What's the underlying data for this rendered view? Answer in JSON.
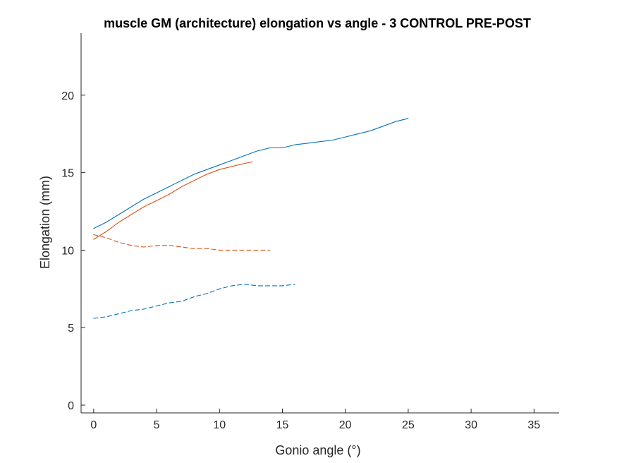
{
  "chart_data": {
    "type": "line",
    "title": "muscle GM (architecture) elongation vs angle - 3 CONTROL PRE-POST",
    "xlabel": "Gonio angle (°)",
    "ylabel": "Elongation (mm)",
    "xlim": [
      -1,
      37
    ],
    "ylim": [
      -0.5,
      24
    ],
    "xticks": [
      0,
      5,
      10,
      15,
      20,
      25,
      30,
      35
    ],
    "yticks": [
      0,
      5,
      10,
      15,
      20
    ],
    "grid": false,
    "legend": "none",
    "series": [
      {
        "color": "#0072BD",
        "style": "solid",
        "x": [
          0,
          1,
          2,
          3,
          4,
          5,
          6,
          7,
          8,
          9,
          10,
          11,
          12,
          13,
          14,
          15,
          16,
          17,
          18,
          19,
          20,
          21,
          22,
          23,
          24,
          25
        ],
        "y": [
          11.4,
          11.8,
          12.3,
          12.8,
          13.3,
          13.7,
          14.1,
          14.5,
          14.9,
          15.2,
          15.5,
          15.8,
          16.1,
          16.4,
          16.6,
          16.6,
          16.8,
          16.9,
          17.0,
          17.1,
          17.3,
          17.5,
          17.7,
          18.0,
          18.3,
          18.5
        ]
      },
      {
        "color": "#D95319",
        "style": "solid",
        "x": [
          0,
          1,
          2,
          3,
          4,
          5,
          6,
          7,
          8,
          9,
          10,
          11,
          12,
          12.6
        ],
        "y": [
          10.7,
          11.2,
          11.8,
          12.3,
          12.8,
          13.2,
          13.6,
          14.1,
          14.5,
          14.9,
          15.2,
          15.4,
          15.6,
          15.7
        ]
      },
      {
        "color": "#D95319",
        "style": "dashed",
        "x": [
          0,
          1,
          2,
          3,
          4,
          5,
          6,
          7,
          8,
          9,
          10,
          11,
          12,
          13,
          14
        ],
        "y": [
          11.0,
          10.8,
          10.5,
          10.3,
          10.2,
          10.3,
          10.3,
          10.2,
          10.1,
          10.1,
          10.0,
          10.0,
          10.0,
          10.0,
          10.0
        ]
      },
      {
        "color": "#0072BD",
        "style": "dashed",
        "x": [
          0,
          1,
          2,
          3,
          4,
          5,
          6,
          7,
          8,
          9,
          10,
          11,
          12,
          13,
          14,
          15,
          16
        ],
        "y": [
          5.6,
          5.7,
          5.9,
          6.1,
          6.2,
          6.4,
          6.6,
          6.7,
          7.0,
          7.2,
          7.5,
          7.7,
          7.8,
          7.7,
          7.7,
          7.7,
          7.8
        ]
      }
    ]
  }
}
